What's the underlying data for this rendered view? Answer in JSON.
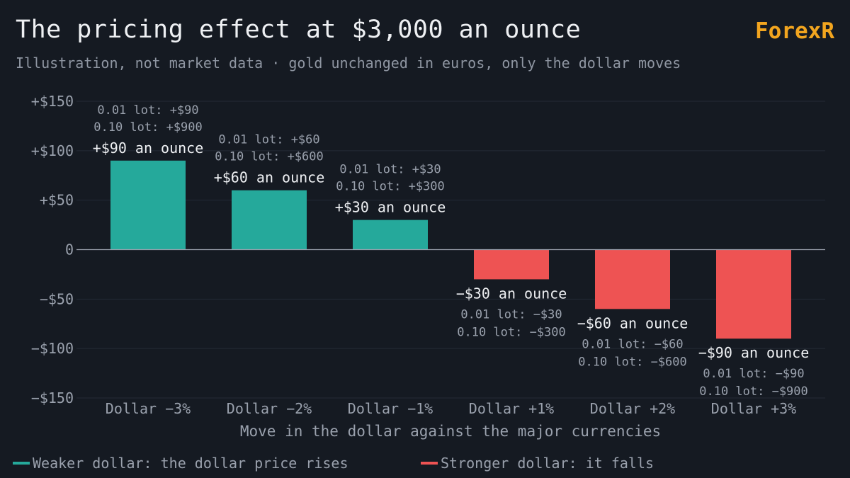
{
  "header": {
    "title": "The pricing effect at $3,000 an ounce",
    "subtitle": "Illustration, not market data · gold unchanged in euros, only the dollar moves",
    "brand": "ForexR"
  },
  "colors": {
    "background": "#151a22",
    "positive": "#25a99b",
    "negative": "#ee5353",
    "brand": "#f2a51f",
    "grid": "#252b36",
    "zero_line": "#9aa1ad",
    "label_primary": "#eef0f3",
    "label_secondary": "#9aa1ad"
  },
  "chart_data": {
    "type": "bar",
    "title": "The pricing effect at $3,000 an ounce",
    "xlabel": "Move in the dollar against the major currencies",
    "ylabel": "",
    "ylim": [
      -150,
      150
    ],
    "y_ticks": [
      150,
      100,
      50,
      0,
      -50,
      -100,
      -150
    ],
    "y_tick_labels": [
      "+$150",
      "+$100",
      "+$50",
      "0",
      "−$50",
      "−$100",
      "−$150"
    ],
    "grid": true,
    "legend_position": "bottom-left",
    "categories": [
      "Dollar −3%",
      "Dollar −2%",
      "Dollar −1%",
      "Dollar +1%",
      "Dollar +2%",
      "Dollar +3%"
    ],
    "values": [
      90,
      60,
      30,
      -30,
      -60,
      -90
    ],
    "bar_labels": [
      "+$90 an ounce",
      "+$60 an ounce",
      "+$30 an ounce",
      "−$30 an ounce",
      "−$60 an ounce",
      "−$90 an ounce"
    ],
    "lot_001_labels": [
      "0.01 lot: +$90",
      "0.01 lot: +$60",
      "0.01 lot: +$30",
      "0.01 lot: −$30",
      "0.01 lot: −$60",
      "0.01 lot: −$90"
    ],
    "lot_010_labels": [
      "0.10 lot: +$900",
      "0.10 lot: +$600",
      "0.10 lot: +$300",
      "0.10 lot: −$300",
      "0.10 lot: −$600",
      "0.10 lot: −$900"
    ],
    "legend": [
      {
        "label": "Weaker dollar: the dollar price rises",
        "color": "#25a99b"
      },
      {
        "label": "Stronger dollar: it falls",
        "color": "#ee5353"
      }
    ]
  }
}
